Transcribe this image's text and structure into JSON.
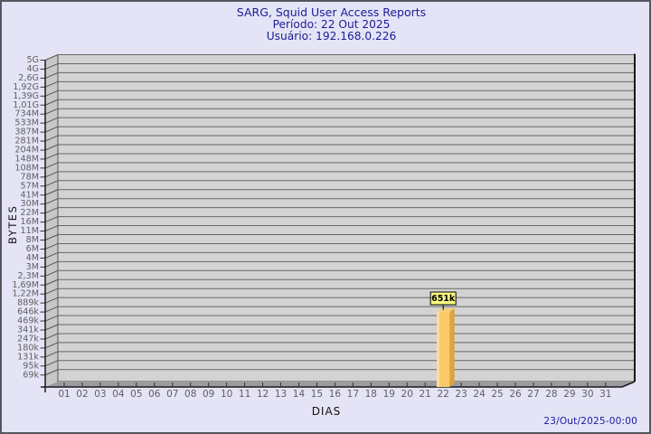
{
  "header": {
    "title": "SARG, Squid User Access Reports",
    "period": "Período: 22 Out 2025",
    "user": "Usuário: 192.168.0.226"
  },
  "footer": {
    "timestamp": "23/Out/2025-00:00"
  },
  "chart_data": {
    "type": "bar",
    "style": "3d-bar",
    "title": "SARG, Squid User Access Reports",
    "subtitle_lines": [
      "Período: 22 Out 2025",
      "Usuário: 192.168.0.226"
    ],
    "xlabel": "DIAS",
    "ylabel": "BYTES",
    "y_scale": "log",
    "grid": "horizontal",
    "y_tick_labels": [
      "5G",
      "4G",
      "2,6G",
      "1,92G",
      "1,39G",
      "1,01G",
      "734M",
      "533M",
      "387M",
      "281M",
      "204M",
      "148M",
      "108M",
      "78M",
      "57M",
      "41M",
      "30M",
      "22M",
      "16M",
      "11M",
      "8M",
      "6M",
      "4M",
      "3M",
      "2,3M",
      "1,69M",
      "1,22M",
      "889k",
      "646k",
      "469k",
      "341k",
      "247k",
      "180k",
      "131k",
      "95k",
      "69k"
    ],
    "y_tick_values": [
      5000000000,
      4000000000,
      2600000000,
      1920000000,
      1390000000,
      1010000000,
      734000000,
      533000000,
      387000000,
      281000000,
      204000000,
      148000000,
      108000000,
      78000000,
      57000000,
      41000000,
      30000000,
      22000000,
      16000000,
      11000000,
      8000000,
      6000000,
      4000000,
      3000000,
      2300000,
      1690000,
      1220000,
      889000,
      646000,
      469000,
      341000,
      247000,
      180000,
      131000,
      95000,
      69000
    ],
    "x_tick_labels": [
      "01",
      "02",
      "03",
      "04",
      "05",
      "06",
      "07",
      "08",
      "09",
      "10",
      "11",
      "12",
      "13",
      "14",
      "15",
      "16",
      "17",
      "18",
      "19",
      "20",
      "21",
      "22",
      "23",
      "24",
      "25",
      "26",
      "27",
      "28",
      "29",
      "30",
      "31"
    ],
    "bars": [
      {
        "x": "22",
        "value_label": "651k",
        "value_bytes": 651000
      }
    ],
    "colors": {
      "page_bg": "#E4E4F6",
      "plot_bg": "#D3D3D3",
      "left_wall_bg": "#C7C7CA",
      "floor": "#9C9CA0",
      "grid_line": "#666666",
      "axis_line": "#1A1A1A",
      "tick_label": "#5F5F5F",
      "axis_title": "#111111",
      "bar_front": "#FBC967",
      "bar_side": "#DFA23E",
      "bar_top": "#F7CF7E",
      "bar_highlight": "#FDE0A4",
      "value_box_bg": "#FAFA82",
      "value_box_border": "#000000",
      "title_color": "#1C1C96",
      "timestamp_color": "#1A1AA8"
    }
  }
}
